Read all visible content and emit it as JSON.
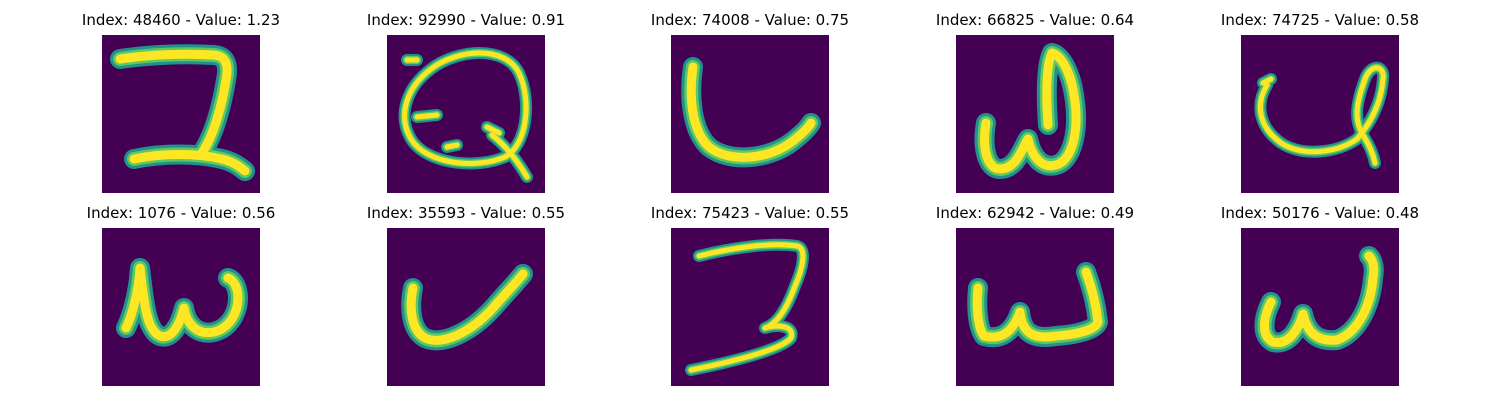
{
  "figure": {
    "colors": {
      "background": "#440154",
      "stroke_outer": "#21918c",
      "stroke_mid": "#5ec962",
      "stroke_core": "#fde725"
    },
    "panels": [
      {
        "index": "48460",
        "value": "1.23",
        "title": "Index: 48460 - Value: 1.23",
        "glyph": "handwritten-2-icon"
      },
      {
        "index": "92990",
        "value": "0.91",
        "title": "Index: 92990 - Value: 0.91",
        "glyph": "handwritten-q-icon"
      },
      {
        "index": "74008",
        "value": "0.75",
        "title": "Index: 74008 - Value: 0.75",
        "glyph": "handwritten-u-icon"
      },
      {
        "index": "66825",
        "value": "0.64",
        "title": "Index: 66825 - Value: 0.64",
        "glyph": "handwritten-w-icon"
      },
      {
        "index": "74725",
        "value": "0.58",
        "title": "Index: 74725 - Value: 0.58",
        "glyph": "handwritten-l-loop-icon"
      },
      {
        "index": "1076",
        "value": "0.56",
        "title": "Index: 1076 - Value: 0.56",
        "glyph": "handwritten-w-icon"
      },
      {
        "index": "35593",
        "value": "0.55",
        "title": "Index: 35593 - Value: 0.55",
        "glyph": "handwritten-v-icon"
      },
      {
        "index": "75423",
        "value": "0.55",
        "title": "Index: 75423 - Value: 0.55",
        "glyph": "handwritten-2-icon"
      },
      {
        "index": "62942",
        "value": "0.49",
        "title": "Index: 62942 - Value: 0.49",
        "glyph": "handwritten-w-icon"
      },
      {
        "index": "50176",
        "value": "0.48",
        "title": "Index: 50176 - Value: 0.48",
        "glyph": "handwritten-w-icon"
      }
    ]
  }
}
